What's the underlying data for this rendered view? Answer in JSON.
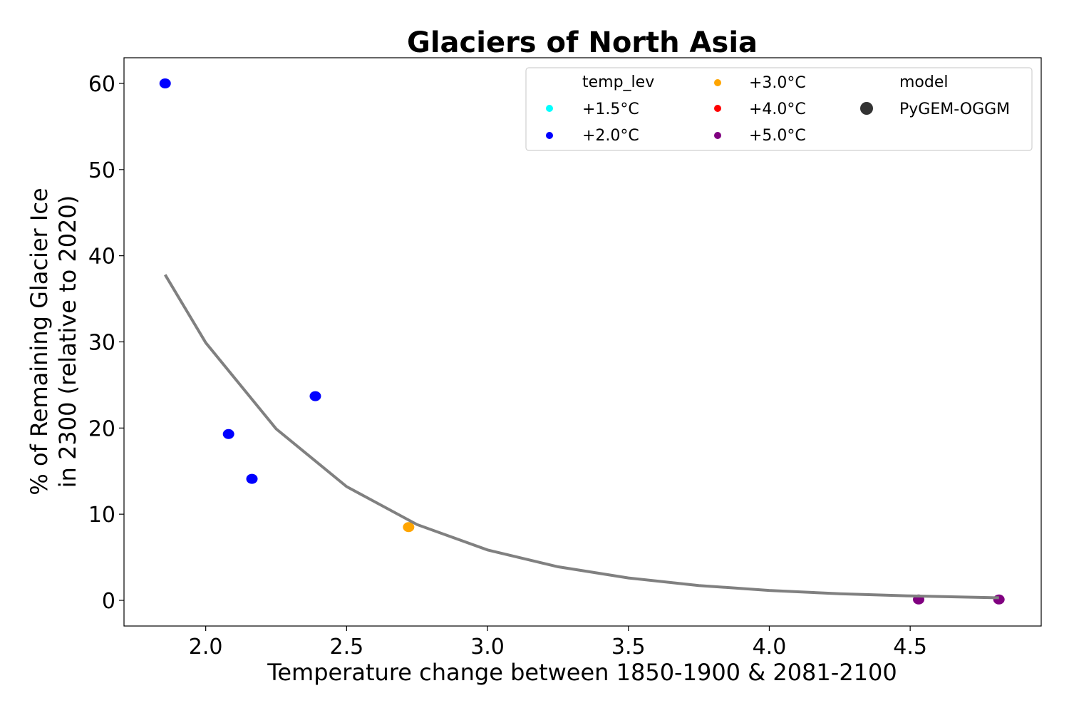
{
  "chart_data": {
    "type": "scatter",
    "title": "Glaciers of North Asia",
    "xlabel": "Temperature change between 1850-1900 & 2081-2100",
    "ylabel": [
      "% of Remaining Glacier Ice",
      "in 2300 (relative to 2020)"
    ],
    "xlim": [
      1.71,
      4.965
    ],
    "ylim": [
      -2.98,
      62.98
    ],
    "xticks": [
      "2.0",
      "2.5",
      "3.0",
      "3.5",
      "4.0",
      "4.5"
    ],
    "yticks": [
      "0",
      "10",
      "20",
      "30",
      "40",
      "50",
      "60"
    ],
    "grid": false,
    "points": [
      {
        "x": 1.856,
        "y": 60.0,
        "temp_lev": "+2.0°C",
        "model": "PyGEM-OGGM"
      },
      {
        "x": 2.081,
        "y": 19.3,
        "temp_lev": "+2.0°C",
        "model": "PyGEM-OGGM"
      },
      {
        "x": 2.164,
        "y": 14.1,
        "temp_lev": "+2.0°C",
        "model": "PyGEM-OGGM"
      },
      {
        "x": 2.389,
        "y": 23.7,
        "temp_lev": "+2.0°C",
        "model": "PyGEM-OGGM"
      },
      {
        "x": 2.72,
        "y": 8.5,
        "temp_lev": "+3.0°C",
        "model": "PyGEM-OGGM"
      },
      {
        "x": 4.53,
        "y": 0.1,
        "temp_lev": "+5.0°C",
        "model": "PyGEM-OGGM"
      },
      {
        "x": 4.815,
        "y": 0.1,
        "temp_lev": "+5.0°C",
        "model": "PyGEM-OGGM"
      }
    ],
    "fit_curve": {
      "color": "#808080",
      "x": [
        1.856,
        2.0,
        2.25,
        2.5,
        2.75,
        3.0,
        3.25,
        3.5,
        3.75,
        4.0,
        4.25,
        4.5,
        4.815
      ],
      "y": [
        37.8,
        29.9,
        19.9,
        13.2,
        8.8,
        5.85,
        3.9,
        2.6,
        1.72,
        1.15,
        0.76,
        0.51,
        0.3
      ]
    },
    "legend": {
      "placement": "top-right",
      "temp_title": "temp_lev",
      "temp_levels": [
        {
          "label": "+1.5°C",
          "color": "#00ffff"
        },
        {
          "label": "+2.0°C",
          "color": "#0000ff"
        },
        {
          "label": "+3.0°C",
          "color": "#ffa500"
        },
        {
          "label": "+4.0°C",
          "color": "#ff0000"
        },
        {
          "label": "+5.0°C",
          "color": "#800080"
        }
      ],
      "model_title": "model",
      "models": [
        {
          "label": "PyGEM-OGGM",
          "color": "#333333"
        }
      ]
    }
  }
}
